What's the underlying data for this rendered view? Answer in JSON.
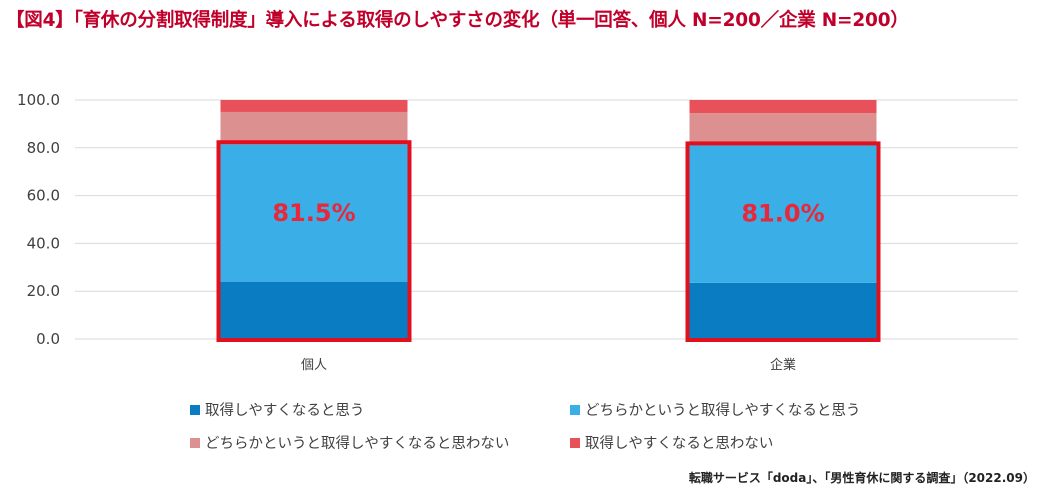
{
  "title": "【図4】「育休の分割取得制度」導入による取得のしやすさの変化（単一回答、個人 N=200／企業 N=200）",
  "source": "転職サービス「doda」、「男性育休に関する調査」（2022.09）",
  "colors": {
    "title": "#c0002a",
    "highlight_box": "#e0101e",
    "data_label": "#e8283a",
    "gridline": "#d9d9d9"
  },
  "chart_data": {
    "type": "bar",
    "stacked": true,
    "categories": [
      "個人",
      "企業"
    ],
    "series": [
      {
        "name": "取得しやすくなると思う",
        "color": "#0a7cc1",
        "values": [
          24.0,
          23.5
        ]
      },
      {
        "name": "どちらかというと取得しやすくなると思う",
        "color": "#3aaee6",
        "values": [
          57.5,
          57.5
        ]
      },
      {
        "name": "どちらかというと取得しやすくなると思わない",
        "color": "#dc9090",
        "values": [
          13.5,
          13.5
        ]
      },
      {
        "name": "取得しやすくなると思わない",
        "color": "#e8505a",
        "values": [
          5.0,
          5.5
        ]
      }
    ],
    "highlight_labels": [
      "81.5%",
      "81.0%"
    ],
    "ylim": [
      0,
      100
    ],
    "yticks": [
      "0.0",
      "20.0",
      "40.0",
      "60.0",
      "80.0",
      "100.0"
    ],
    "grid": true,
    "legend_placement": "bottom"
  }
}
